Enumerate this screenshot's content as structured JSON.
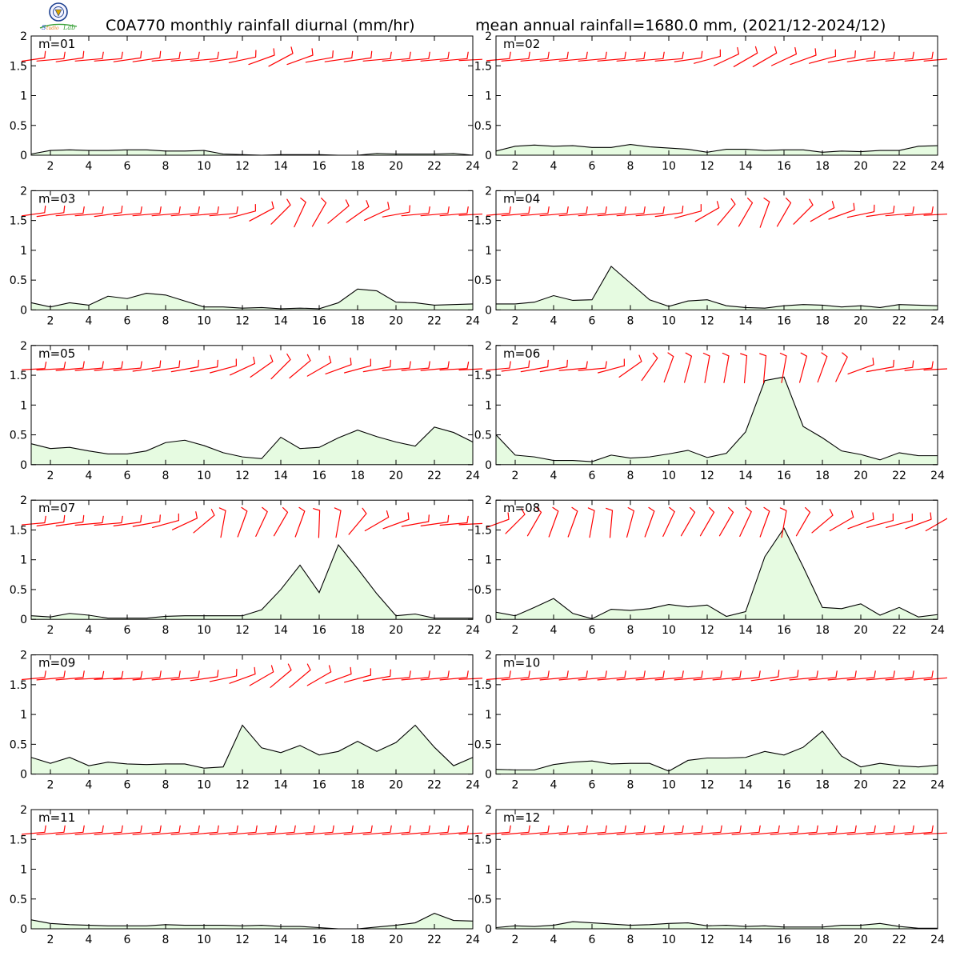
{
  "header": {
    "title_left": "C0A770 monthly rainfall diurnal (mm/hr)",
    "title_right": "mean annual rainfall=1680.0 mm, (2021/12-2024/12)"
  },
  "colors": {
    "fill": "#e6fbe1",
    "line": "#000000",
    "barb": "#ff0000",
    "logo_ring": "#1b3f8f",
    "logo_text_blue": "#1e50c8",
    "logo_text_green": "#3aa13a",
    "logo_text_orange": "#e07a1a"
  },
  "chart_data": [
    {
      "type": "area",
      "label": "m=01",
      "x": [
        1,
        2,
        3,
        4,
        5,
        6,
        7,
        8,
        9,
        10,
        11,
        12,
        13,
        14,
        15,
        16,
        17,
        18,
        19,
        20,
        21,
        22,
        23,
        24
      ],
      "values": [
        0.02,
        0.08,
        0.09,
        0.08,
        0.08,
        0.09,
        0.09,
        0.07,
        0.07,
        0.08,
        0.02,
        0.01,
        0.0,
        0.01,
        0.01,
        0.01,
        0.0,
        0.0,
        0.03,
        0.02,
        0.02,
        0.02,
        0.03,
        0.0
      ],
      "xlim": [
        1,
        24
      ],
      "ylim": [
        0,
        2
      ],
      "xticks": [
        2,
        4,
        6,
        8,
        10,
        12,
        14,
        16,
        18,
        20,
        22,
        24
      ],
      "yticks": [
        0,
        0.5,
        1,
        1.5,
        2
      ],
      "ytick_labels": [
        "0",
        "0.5",
        "1",
        "1.5",
        "2"
      ],
      "barb_dirs": [
        8,
        5,
        8,
        5,
        5,
        8,
        8,
        5,
        5,
        5,
        8,
        12,
        20,
        28,
        20,
        10,
        8,
        8,
        5,
        5,
        5,
        5,
        5,
        3
      ]
    },
    {
      "type": "area",
      "label": "m=02",
      "x": [
        1,
        2,
        3,
        4,
        5,
        6,
        7,
        8,
        9,
        10,
        11,
        12,
        13,
        14,
        15,
        16,
        17,
        18,
        19,
        20,
        21,
        22,
        23,
        24
      ],
      "values": [
        0.07,
        0.15,
        0.17,
        0.15,
        0.16,
        0.13,
        0.13,
        0.18,
        0.14,
        0.12,
        0.1,
        0.05,
        0.1,
        0.1,
        0.08,
        0.09,
        0.09,
        0.05,
        0.07,
        0.06,
        0.08,
        0.08,
        0.15,
        0.16
      ],
      "xlim": [
        1,
        24
      ],
      "ylim": [
        0,
        2
      ],
      "xticks": [
        2,
        4,
        6,
        8,
        10,
        12,
        14,
        16,
        18,
        20,
        22,
        24
      ],
      "yticks": [
        0,
        0.5,
        1,
        1.5,
        2
      ],
      "ytick_labels": [
        "0",
        "0.5",
        "1",
        "1.5",
        "2"
      ],
      "barb_dirs": [
        5,
        5,
        5,
        5,
        5,
        5,
        5,
        5,
        5,
        5,
        8,
        15,
        25,
        30,
        30,
        25,
        20,
        15,
        10,
        8,
        5,
        5,
        5,
        5
      ]
    },
    {
      "type": "area",
      "label": "m=03",
      "x": [
        1,
        2,
        3,
        4,
        5,
        6,
        7,
        8,
        9,
        10,
        11,
        12,
        13,
        14,
        15,
        16,
        17,
        18,
        19,
        20,
        21,
        22,
        23,
        24
      ],
      "values": [
        0.12,
        0.05,
        0.12,
        0.08,
        0.23,
        0.19,
        0.28,
        0.25,
        0.15,
        0.05,
        0.05,
        0.03,
        0.04,
        0.02,
        0.03,
        0.02,
        0.12,
        0.35,
        0.32,
        0.13,
        0.12,
        0.08,
        0.09,
        0.1
      ],
      "xlim": [
        1,
        24
      ],
      "ylim": [
        0,
        2
      ],
      "xticks": [
        2,
        4,
        6,
        8,
        10,
        12,
        14,
        16,
        18,
        20,
        22,
        24
      ],
      "yticks": [
        0,
        0.5,
        1,
        1.5,
        2
      ],
      "ytick_labels": [
        "0",
        "0.5",
        "1",
        "1.5",
        "2"
      ],
      "barb_dirs": [
        8,
        8,
        5,
        5,
        8,
        5,
        5,
        5,
        5,
        5,
        5,
        15,
        28,
        45,
        65,
        60,
        40,
        35,
        25,
        10,
        5,
        5,
        5,
        3
      ]
    },
    {
      "type": "area",
      "label": "m=04",
      "x": [
        1,
        2,
        3,
        4,
        5,
        6,
        7,
        8,
        9,
        10,
        11,
        12,
        13,
        14,
        15,
        16,
        17,
        18,
        19,
        20,
        21,
        22,
        23,
        24
      ],
      "values": [
        0.1,
        0.1,
        0.13,
        0.24,
        0.16,
        0.17,
        0.73,
        0.45,
        0.17,
        0.06,
        0.15,
        0.17,
        0.07,
        0.04,
        0.03,
        0.07,
        0.09,
        0.08,
        0.05,
        0.07,
        0.04,
        0.09,
        0.08,
        0.07
      ],
      "xlim": [
        1,
        24
      ],
      "ylim": [
        0,
        2
      ],
      "xticks": [
        2,
        4,
        6,
        8,
        10,
        12,
        14,
        16,
        18,
        20,
        22,
        24
      ],
      "yticks": [
        0,
        0.5,
        1,
        1.5,
        2
      ],
      "ytick_labels": [
        "0",
        "0.5",
        "1",
        "1.5",
        "2"
      ],
      "barb_dirs": [
        5,
        5,
        5,
        5,
        5,
        5,
        5,
        5,
        5,
        8,
        15,
        30,
        50,
        60,
        70,
        60,
        45,
        30,
        20,
        12,
        8,
        5,
        5,
        3
      ]
    },
    {
      "type": "area",
      "label": "m=05",
      "x": [
        1,
        2,
        3,
        4,
        5,
        6,
        7,
        8,
        9,
        10,
        11,
        12,
        13,
        14,
        15,
        16,
        17,
        18,
        19,
        20,
        21,
        22,
        23,
        24
      ],
      "values": [
        0.35,
        0.27,
        0.29,
        0.23,
        0.18,
        0.18,
        0.23,
        0.37,
        0.41,
        0.32,
        0.2,
        0.13,
        0.1,
        0.46,
        0.27,
        0.29,
        0.45,
        0.58,
        0.47,
        0.38,
        0.31,
        0.63,
        0.54,
        0.38
      ],
      "xlim": [
        1,
        24
      ],
      "ylim": [
        0,
        2
      ],
      "xticks": [
        2,
        4,
        6,
        8,
        10,
        12,
        14,
        16,
        18,
        20,
        22,
        24
      ],
      "yticks": [
        0,
        0.5,
        1,
        1.5,
        2
      ],
      "ytick_labels": [
        "0",
        "0.5",
        "1",
        "1.5",
        "2"
      ],
      "barb_dirs": [
        3,
        3,
        5,
        5,
        5,
        5,
        8,
        8,
        10,
        10,
        15,
        25,
        35,
        45,
        40,
        30,
        20,
        15,
        10,
        5,
        5,
        5,
        3,
        3
      ]
    },
    {
      "type": "area",
      "label": "m=06",
      "x": [
        1,
        2,
        3,
        4,
        5,
        6,
        7,
        8,
        9,
        10,
        11,
        12,
        13,
        14,
        15,
        16,
        17,
        18,
        19,
        20,
        21,
        22,
        23,
        24
      ],
      "values": [
        0.5,
        0.16,
        0.13,
        0.07,
        0.07,
        0.05,
        0.16,
        0.11,
        0.13,
        0.18,
        0.24,
        0.12,
        0.19,
        0.55,
        1.41,
        1.47,
        0.64,
        0.45,
        0.23,
        0.17,
        0.08,
        0.2,
        0.15,
        0.15
      ],
      "xlim": [
        1,
        24
      ],
      "ylim": [
        0,
        2
      ],
      "xticks": [
        2,
        4,
        6,
        8,
        10,
        12,
        14,
        16,
        18,
        20,
        22,
        24
      ],
      "yticks": [
        0,
        0.5,
        1,
        1.5,
        2
      ],
      "ytick_labels": [
        "0",
        "0.5",
        "1",
        "1.5",
        "2"
      ],
      "barb_dirs": [
        5,
        8,
        10,
        10,
        5,
        5,
        15,
        35,
        55,
        70,
        75,
        80,
        80,
        85,
        85,
        80,
        75,
        70,
        65,
        20,
        10,
        8,
        5,
        3
      ]
    },
    {
      "type": "area",
      "label": "m=07",
      "x": [
        1,
        2,
        3,
        4,
        5,
        6,
        7,
        8,
        9,
        10,
        11,
        12,
        13,
        14,
        15,
        16,
        17,
        18,
        19,
        20,
        21,
        22,
        23,
        24
      ],
      "values": [
        0.06,
        0.04,
        0.1,
        0.07,
        0.02,
        0.02,
        0.02,
        0.05,
        0.06,
        0.06,
        0.06,
        0.06,
        0.16,
        0.5,
        0.91,
        0.45,
        1.25,
        0.85,
        0.43,
        0.06,
        0.09,
        0.02,
        0.02,
        0.02
      ],
      "xlim": [
        1,
        24
      ],
      "ylim": [
        0,
        2
      ],
      "xticks": [
        2,
        4,
        6,
        8,
        10,
        12,
        14,
        16,
        18,
        20,
        22,
        24
      ],
      "yticks": [
        0,
        0.5,
        1,
        1.5,
        2
      ],
      "ytick_labels": [
        "0",
        "0.5",
        "1",
        "1.5",
        "2"
      ],
      "barb_dirs": [
        5,
        8,
        8,
        5,
        5,
        8,
        10,
        15,
        25,
        40,
        80,
        70,
        65,
        60,
        70,
        88,
        80,
        50,
        30,
        20,
        10,
        8,
        5,
        3
      ]
    },
    {
      "type": "area",
      "label": "m=08",
      "x": [
        1,
        2,
        3,
        4,
        5,
        6,
        7,
        8,
        9,
        10,
        11,
        12,
        13,
        14,
        15,
        16,
        17,
        18,
        19,
        20,
        21,
        22,
        23,
        24
      ],
      "values": [
        0.12,
        0.06,
        0.2,
        0.35,
        0.1,
        0.01,
        0.17,
        0.15,
        0.18,
        0.25,
        0.21,
        0.24,
        0.05,
        0.13,
        1.05,
        1.53,
        0.88,
        0.2,
        0.18,
        0.26,
        0.07,
        0.2,
        0.04,
        0.08
      ],
      "xlim": [
        1,
        24
      ],
      "ylim": [
        0,
        2
      ],
      "xticks": [
        2,
        4,
        6,
        8,
        10,
        12,
        14,
        16,
        18,
        20,
        22,
        24
      ],
      "yticks": [
        0,
        0.5,
        1,
        1.5,
        2
      ],
      "ytick_labels": [
        "0",
        "0.5",
        "1",
        "1.5",
        "2"
      ],
      "barb_dirs": [
        20,
        45,
        60,
        70,
        70,
        80,
        85,
        75,
        70,
        65,
        60,
        60,
        60,
        65,
        70,
        80,
        60,
        40,
        30,
        20,
        15,
        15,
        20,
        30
      ]
    },
    {
      "type": "area",
      "label": "m=09",
      "x": [
        1,
        2,
        3,
        4,
        5,
        6,
        7,
        8,
        9,
        10,
        11,
        12,
        13,
        14,
        15,
        16,
        17,
        18,
        19,
        20,
        21,
        22,
        23,
        24
      ],
      "values": [
        0.28,
        0.18,
        0.28,
        0.14,
        0.2,
        0.17,
        0.16,
        0.17,
        0.17,
        0.1,
        0.12,
        0.82,
        0.44,
        0.36,
        0.48,
        0.32,
        0.38,
        0.55,
        0.38,
        0.53,
        0.82,
        0.45,
        0.14,
        0.28
      ],
      "xlim": [
        1,
        24
      ],
      "ylim": [
        0,
        2
      ],
      "xticks": [
        2,
        4,
        6,
        8,
        10,
        12,
        14,
        16,
        18,
        20,
        22,
        24
      ],
      "yticks": [
        0,
        0.5,
        1,
        1.5,
        2
      ],
      "ytick_labels": [
        "0",
        "0.5",
        "1",
        "1.5",
        "2"
      ],
      "barb_dirs": [
        5,
        5,
        5,
        3,
        3,
        3,
        5,
        5,
        5,
        8,
        12,
        20,
        30,
        40,
        40,
        30,
        20,
        15,
        10,
        5,
        5,
        5,
        5,
        3
      ]
    },
    {
      "type": "area",
      "label": "m=10",
      "x": [
        1,
        2,
        3,
        4,
        5,
        6,
        7,
        8,
        9,
        10,
        11,
        12,
        13,
        14,
        15,
        16,
        17,
        18,
        19,
        20,
        21,
        22,
        23,
        24
      ],
      "values": [
        0.08,
        0.07,
        0.07,
        0.16,
        0.2,
        0.22,
        0.17,
        0.18,
        0.18,
        0.05,
        0.23,
        0.27,
        0.27,
        0.28,
        0.38,
        0.32,
        0.45,
        0.72,
        0.3,
        0.12,
        0.18,
        0.14,
        0.12,
        0.15
      ],
      "xlim": [
        1,
        24
      ],
      "ylim": [
        0,
        2
      ],
      "xticks": [
        2,
        4,
        6,
        8,
        10,
        12,
        14,
        16,
        18,
        20,
        22,
        24
      ],
      "yticks": [
        0,
        0.5,
        1,
        1.5,
        2
      ],
      "ytick_labels": [
        "0",
        "0.5",
        "1",
        "1.5",
        "2"
      ],
      "barb_dirs": [
        5,
        5,
        5,
        5,
        5,
        5,
        5,
        5,
        5,
        5,
        5,
        5,
        5,
        5,
        8,
        8,
        5,
        5,
        5,
        5,
        5,
        5,
        5,
        5
      ]
    },
    {
      "type": "area",
      "label": "m=11",
      "x": [
        1,
        2,
        3,
        4,
        5,
        6,
        7,
        8,
        9,
        10,
        11,
        12,
        13,
        14,
        15,
        16,
        17,
        18,
        19,
        20,
        21,
        22,
        23,
        24
      ],
      "values": [
        0.15,
        0.09,
        0.07,
        0.06,
        0.05,
        0.05,
        0.05,
        0.07,
        0.06,
        0.06,
        0.06,
        0.05,
        0.06,
        0.04,
        0.04,
        0.02,
        0.0,
        0.0,
        0.03,
        0.06,
        0.1,
        0.26,
        0.14,
        0.13
      ],
      "xlim": [
        1,
        24
      ],
      "ylim": [
        0,
        2
      ],
      "xticks": [
        2,
        4,
        6,
        8,
        10,
        12,
        14,
        16,
        18,
        20,
        22,
        24
      ],
      "yticks": [
        0,
        0.5,
        1,
        1.5,
        2
      ],
      "ytick_labels": [
        "0",
        "0.5",
        "1",
        "1.5",
        "2"
      ],
      "barb_dirs": [
        5,
        5,
        5,
        5,
        5,
        5,
        5,
        5,
        5,
        5,
        5,
        5,
        5,
        5,
        5,
        5,
        5,
        5,
        5,
        5,
        5,
        5,
        5,
        3
      ]
    },
    {
      "type": "area",
      "label": "m=12",
      "x": [
        1,
        2,
        3,
        4,
        5,
        6,
        7,
        8,
        9,
        10,
        11,
        12,
        13,
        14,
        15,
        16,
        17,
        18,
        19,
        20,
        21,
        22,
        23,
        24
      ],
      "values": [
        0.02,
        0.05,
        0.04,
        0.06,
        0.12,
        0.1,
        0.08,
        0.06,
        0.07,
        0.09,
        0.1,
        0.05,
        0.06,
        0.04,
        0.05,
        0.03,
        0.03,
        0.03,
        0.06,
        0.06,
        0.09,
        0.04,
        0.01,
        0.01
      ],
      "xlim": [
        1,
        24
      ],
      "ylim": [
        0,
        2
      ],
      "xticks": [
        2,
        4,
        6,
        8,
        10,
        12,
        14,
        16,
        18,
        20,
        22,
        24
      ],
      "yticks": [
        0,
        0.5,
        1,
        1.5,
        2
      ],
      "ytick_labels": [
        "0",
        "0.5",
        "1",
        "1.5",
        "2"
      ],
      "barb_dirs": [
        5,
        5,
        5,
        5,
        5,
        5,
        5,
        5,
        5,
        5,
        5,
        5,
        5,
        5,
        5,
        5,
        5,
        5,
        5,
        5,
        5,
        5,
        5,
        3
      ]
    }
  ]
}
